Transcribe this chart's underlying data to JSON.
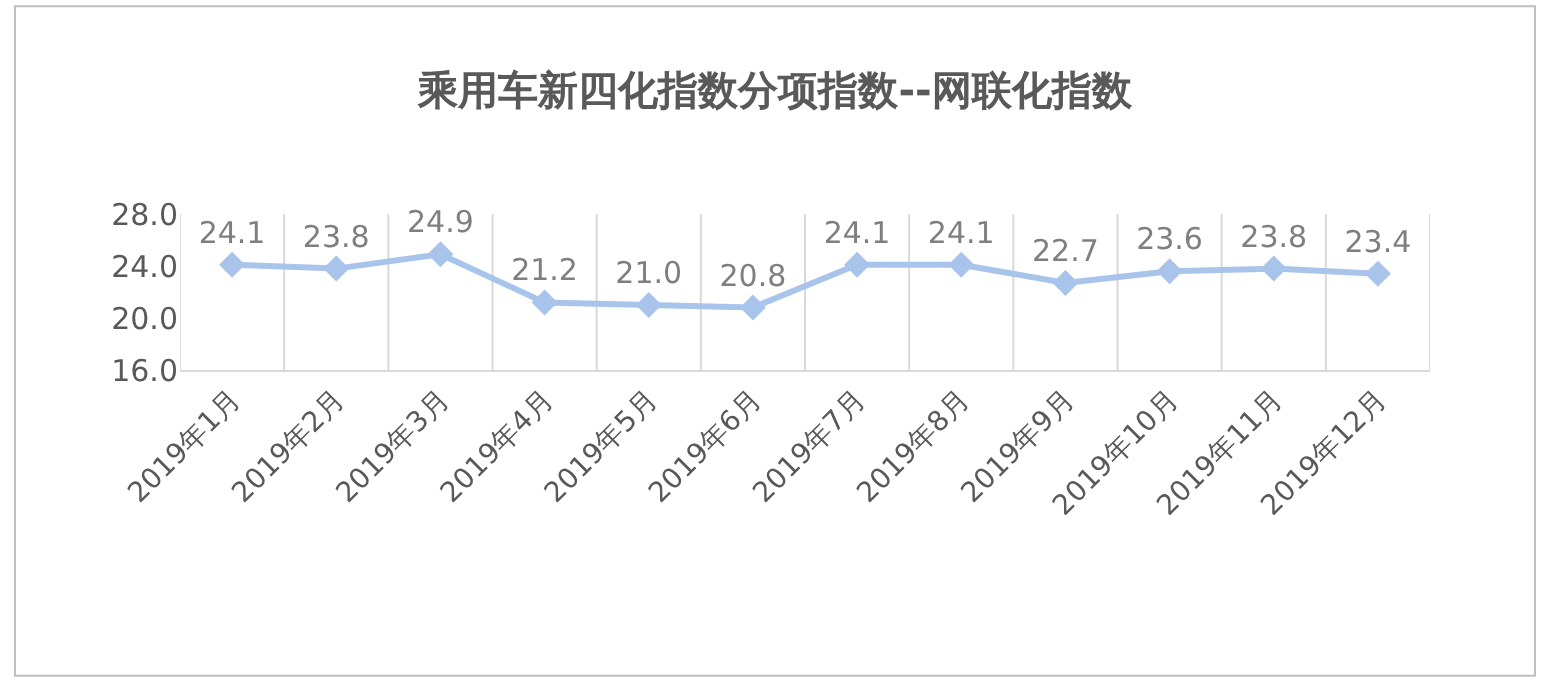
{
  "chart_data": {
    "type": "line",
    "title": "乘用车新四化指数分项指数--网联化指数",
    "categories": [
      "2019年1月",
      "2019年2月",
      "2019年3月",
      "2019年4月",
      "2019年5月",
      "2019年6月",
      "2019年7月",
      "2019年8月",
      "2019年9月",
      "2019年10月",
      "2019年11月",
      "2019年12月"
    ],
    "series": [
      {
        "color": "#a9c4eb",
        "values": [
          24.1,
          23.8,
          24.9,
          21.2,
          21.0,
          20.8,
          24.1,
          24.1,
          22.7,
          23.6,
          23.8,
          23.4
        ],
        "value_labels": [
          "24.1",
          "23.8",
          "24.9",
          "21.2",
          "21.0",
          "20.8",
          "24.1",
          "24.1",
          "22.7",
          "23.6",
          "23.8",
          "23.4"
        ]
      }
    ],
    "ylim": [
      16,
      28
    ],
    "yticks": [
      {
        "value": 16,
        "label": "16.0"
      },
      {
        "value": 20,
        "label": "20.0"
      },
      {
        "value": 24,
        "label": "24.0"
      },
      {
        "value": 28,
        "label": "28.0"
      }
    ],
    "grid": "x",
    "marker": "diamond",
    "line_style": "solid",
    "legend": false
  }
}
